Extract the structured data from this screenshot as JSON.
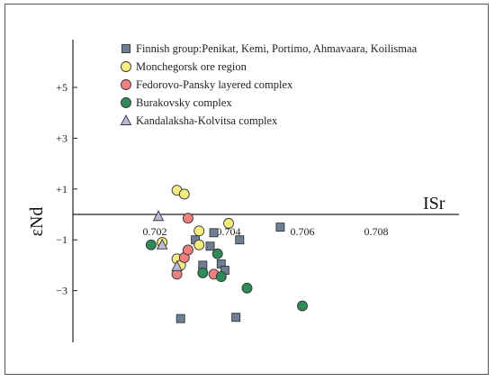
{
  "chart_data": {
    "type": "scatter",
    "xlabel": "ISr",
    "ylabel": "εNd",
    "x_ticks": [
      "0.702",
      "0.704",
      "0.706",
      "0.708"
    ],
    "y_ticks": [
      "+5",
      "+3",
      "+1",
      "−1",
      "−3"
    ],
    "grid": false,
    "legend_position": "top-right",
    "series": [
      {
        "name": "Finnish group:Penikat, Kemi, Portimo, Ahmavaara, Koilismaa",
        "marker": "square",
        "color": "#6e7f96",
        "points": [
          {
            "x": 0.7027,
            "y": -4.1
          },
          {
            "x": 0.7031,
            "y": -1.0
          },
          {
            "x": 0.7033,
            "y": -2.0
          },
          {
            "x": 0.7035,
            "y": -1.25
          },
          {
            "x": 0.7036,
            "y": -0.72
          },
          {
            "x": 0.7038,
            "y": -1.95
          },
          {
            "x": 0.7039,
            "y": -2.2
          },
          {
            "x": 0.7042,
            "y": -4.05
          },
          {
            "x": 0.7043,
            "y": -1.0
          },
          {
            "x": 0.7054,
            "y": -0.5
          }
        ]
      },
      {
        "name": "Monchegorsk ore region",
        "marker": "circle",
        "color": "#f5ec80",
        "points": [
          {
            "x": 0.7022,
            "y": -1.1
          },
          {
            "x": 0.7026,
            "y": -1.75
          },
          {
            "x": 0.7027,
            "y": -2.0
          },
          {
            "x": 0.7026,
            "y": 0.95
          },
          {
            "x": 0.7028,
            "y": 0.8
          },
          {
            "x": 0.7032,
            "y": -0.65
          },
          {
            "x": 0.7032,
            "y": -1.2
          },
          {
            "x": 0.704,
            "y": -0.35
          }
        ]
      },
      {
        "name": "Fedorovo-Pansky layered complex",
        "marker": "circle",
        "color": "#ee8080",
        "points": [
          {
            "x": 0.7026,
            "y": -2.35
          },
          {
            "x": 0.7028,
            "y": -1.7
          },
          {
            "x": 0.7029,
            "y": -1.4
          },
          {
            "x": 0.7029,
            "y": -0.15
          },
          {
            "x": 0.7036,
            "y": -2.35
          }
        ]
      },
      {
        "name": "Burakovsky complex",
        "marker": "circle",
        "color": "#2e8b57",
        "points": [
          {
            "x": 0.7019,
            "y": -1.2
          },
          {
            "x": 0.7033,
            "y": -2.3
          },
          {
            "x": 0.7037,
            "y": -1.55
          },
          {
            "x": 0.7038,
            "y": -2.45
          },
          {
            "x": 0.7045,
            "y": -2.9
          },
          {
            "x": 0.706,
            "y": -3.6
          }
        ]
      },
      {
        "name": "Kandalaksha-Kolvitsa complex",
        "marker": "triangle",
        "color": "#b9b9d9",
        "points": [
          {
            "x": 0.7021,
            "y": -0.08
          },
          {
            "x": 0.7022,
            "y": -1.2
          },
          {
            "x": 0.7026,
            "y": -2.05
          }
        ]
      }
    ]
  }
}
